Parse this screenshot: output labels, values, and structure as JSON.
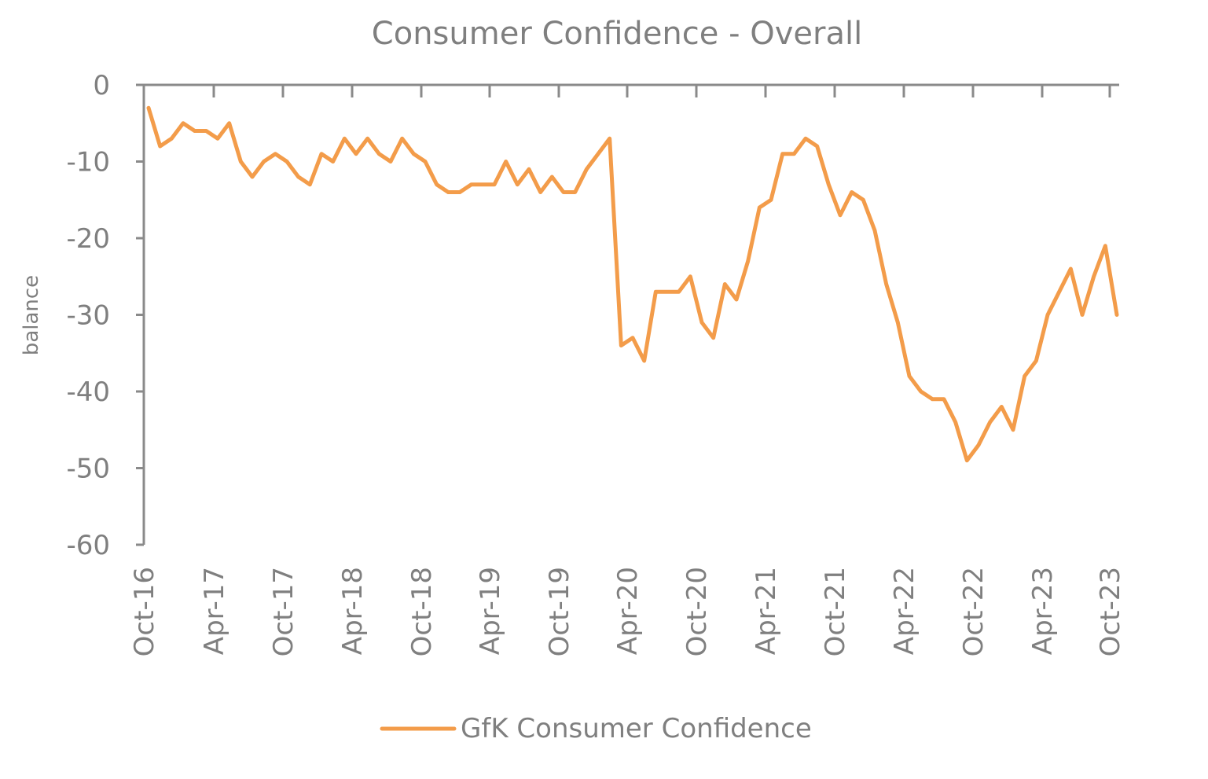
{
  "chart_data": {
    "type": "line",
    "title": "Consumer Confidence - Overall",
    "xlabel": "",
    "ylabel": "balance",
    "ylim": [
      -60,
      0
    ],
    "yticks": [
      0,
      -10,
      -20,
      -30,
      -40,
      -50,
      -60
    ],
    "xlim": [
      "2016-10",
      "2023-10"
    ],
    "tick_labels": [
      "Oct-16",
      "Apr-17",
      "Oct-17",
      "Apr-18",
      "Oct-18",
      "Apr-19",
      "Oct-19",
      "Apr-20",
      "Oct-20",
      "Apr-21",
      "Oct-21",
      "Apr-22",
      "Oct-22",
      "Apr-23",
      "Oct-23"
    ],
    "x": [
      "2016-10",
      "2016-11",
      "2016-12",
      "2017-01",
      "2017-02",
      "2017-03",
      "2017-04",
      "2017-05",
      "2017-06",
      "2017-07",
      "2017-08",
      "2017-09",
      "2017-10",
      "2017-11",
      "2017-12",
      "2018-01",
      "2018-02",
      "2018-03",
      "2018-04",
      "2018-05",
      "2018-06",
      "2018-07",
      "2018-08",
      "2018-09",
      "2018-10",
      "2018-11",
      "2018-12",
      "2019-01",
      "2019-02",
      "2019-03",
      "2019-04",
      "2019-05",
      "2019-06",
      "2019-07",
      "2019-08",
      "2019-09",
      "2019-10",
      "2019-11",
      "2019-12",
      "2020-01",
      "2020-02",
      "2020-03",
      "2020-04",
      "2020-05",
      "2020-06",
      "2020-07",
      "2020-08",
      "2020-09",
      "2020-10",
      "2020-11",
      "2020-12",
      "2021-01",
      "2021-02",
      "2021-03",
      "2021-04",
      "2021-05",
      "2021-06",
      "2021-07",
      "2021-08",
      "2021-09",
      "2021-10",
      "2021-11",
      "2021-12",
      "2022-01",
      "2022-02",
      "2022-03",
      "2022-04",
      "2022-05",
      "2022-06",
      "2022-07",
      "2022-08",
      "2022-09",
      "2022-10",
      "2022-11",
      "2022-12",
      "2023-01",
      "2023-02",
      "2023-03",
      "2023-04",
      "2023-05",
      "2023-06",
      "2023-07",
      "2023-08",
      "2023-09",
      "2023-10"
    ],
    "series": [
      {
        "name": "GfK Consumer Confidence",
        "color": "#f39c4a",
        "values": [
          -3,
          -8,
          -7,
          -5,
          -6,
          -6,
          -7,
          -5,
          -10,
          -12,
          -10,
          -9,
          -10,
          -12,
          -13,
          -9,
          -10,
          -7,
          -9,
          -7,
          -9,
          -10,
          -7,
          -9,
          -10,
          -13,
          -14,
          -14,
          -13,
          -13,
          -13,
          -10,
          -13,
          -11,
          -14,
          -12,
          -14,
          -14,
          -11,
          -9,
          -7,
          -34,
          -33,
          -36,
          -27,
          -27,
          -27,
          -25,
          -31,
          -33,
          -26,
          -28,
          -23,
          -16,
          -15,
          -9,
          -9,
          -7,
          -8,
          -13,
          -17,
          -14,
          -15,
          -19,
          -26,
          -31,
          -38,
          -40,
          -41,
          -41,
          -44,
          -49,
          -47,
          -44,
          -42,
          -45,
          -38,
          -36,
          -30,
          -27,
          -24,
          -30,
          -25,
          -21,
          -30
        ]
      }
    ],
    "legend": {
      "position": "bottom",
      "entries": [
        "GfK Consumer Confidence"
      ]
    },
    "grid": false
  }
}
